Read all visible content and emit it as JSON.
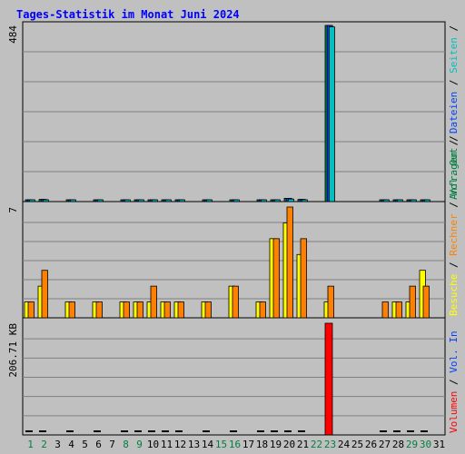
{
  "title": "Tages-Statistik im Monat Juni 2024",
  "colors": {
    "background": "#c0c0c0",
    "title": "#0000ff",
    "grid": "#808080",
    "anfragen": "#008040",
    "dateien": "#0040ff",
    "seiten": "#00c0c0",
    "besuche": "#ffff00",
    "rechner": "#ff8000",
    "vol_out": "#008040",
    "vol_in": "#0040ff",
    "volumen": "#ff0000",
    "weekend_day": "#008040",
    "weekday": "#000000"
  },
  "chart_data": [
    {
      "type": "bar",
      "panel": "top",
      "ymax_label": "484",
      "ylim": [
        0,
        484
      ],
      "legend_vertical": [
        {
          "text": "Anfragen",
          "color": "#008040"
        },
        {
          "text": "Dateien",
          "color": "#0040ff"
        },
        {
          "text": "Seiten",
          "color": "#00c0c0"
        }
      ],
      "categories": [
        1,
        2,
        3,
        4,
        5,
        6,
        7,
        8,
        9,
        10,
        11,
        12,
        13,
        14,
        15,
        16,
        17,
        18,
        19,
        20,
        21,
        22,
        23,
        24,
        25,
        26,
        27,
        28,
        29,
        30,
        31
      ],
      "series": [
        {
          "name": "Anfragen",
          "values": [
            3,
            6,
            0,
            2,
            0,
            2,
            0,
            2,
            2,
            3,
            5,
            3,
            0,
            2,
            0,
            2,
            0,
            2,
            4,
            9,
            6,
            0,
            484,
            0,
            0,
            0,
            2,
            2,
            3,
            5,
            0
          ]
        },
        {
          "name": "Dateien",
          "values": [
            3,
            6,
            0,
            2,
            0,
            2,
            0,
            2,
            2,
            3,
            5,
            3,
            0,
            2,
            0,
            2,
            0,
            2,
            4,
            9,
            6,
            0,
            484,
            0,
            0,
            0,
            2,
            2,
            3,
            5,
            0
          ]
        },
        {
          "name": "Seiten",
          "values": [
            2,
            5,
            0,
            1,
            0,
            1,
            0,
            1,
            1,
            2,
            4,
            2,
            0,
            1,
            0,
            1,
            0,
            1,
            3,
            7,
            5,
            0,
            480,
            0,
            0,
            0,
            1,
            1,
            2,
            4,
            0
          ]
        }
      ]
    },
    {
      "type": "bar",
      "panel": "middle",
      "ymax_label": "7",
      "ylim": [
        0,
        7
      ],
      "legend_vertical": [
        {
          "text": "Besuche",
          "color": "#ffff00"
        },
        {
          "text": "Rechner",
          "color": "#ff8000"
        },
        {
          "text": "Vol. Out",
          "color": "#008040"
        }
      ],
      "categories": [
        1,
        2,
        3,
        4,
        5,
        6,
        7,
        8,
        9,
        10,
        11,
        12,
        13,
        14,
        15,
        16,
        17,
        18,
        19,
        20,
        21,
        22,
        23,
        24,
        25,
        26,
        27,
        28,
        29,
        30,
        31
      ],
      "series": [
        {
          "name": "Besuche",
          "values": [
            1,
            2,
            0,
            1,
            0,
            1,
            0,
            1,
            1,
            1,
            1,
            1,
            0,
            1,
            0,
            2,
            0,
            1,
            5,
            6,
            4,
            0,
            1,
            0,
            0,
            0,
            0,
            1,
            1,
            3,
            0
          ]
        },
        {
          "name": "Rechner",
          "values": [
            1,
            3,
            0,
            1,
            0,
            1,
            0,
            1,
            1,
            2,
            1,
            1,
            0,
            1,
            0,
            2,
            0,
            1,
            5,
            7,
            5,
            0,
            2,
            0,
            0,
            0,
            1,
            1,
            2,
            2,
            0
          ]
        }
      ]
    },
    {
      "type": "bar",
      "panel": "bottom",
      "ymax_label": "206.71 KB",
      "ylim": [
        0,
        206.71
      ],
      "legend_vertical": [
        {
          "text": "Volumen",
          "color": "#ff0000"
        },
        {
          "text": "Vol. In",
          "color": "#0040ff"
        }
      ],
      "categories": [
        1,
        2,
        3,
        4,
        5,
        6,
        7,
        8,
        9,
        10,
        11,
        12,
        13,
        14,
        15,
        16,
        17,
        18,
        19,
        20,
        21,
        22,
        23,
        24,
        25,
        26,
        27,
        28,
        29,
        30,
        31
      ],
      "series": [
        {
          "name": "Volumen",
          "values": [
            0.5,
            0.5,
            0,
            0.5,
            0,
            0.5,
            0,
            0.5,
            0.5,
            0.5,
            0.5,
            0.5,
            0,
            0.5,
            0,
            0.5,
            0,
            0.5,
            0.5,
            0.5,
            0.5,
            0,
            206.71,
            0,
            0,
            0,
            0.5,
            0.5,
            0.5,
            0.5,
            0
          ]
        }
      ]
    }
  ],
  "x_labels": [
    "1",
    "2",
    "3",
    "4",
    "5",
    "6",
    "7",
    "8",
    "9",
    "10",
    "11",
    "12",
    "13",
    "14",
    "15",
    "16",
    "17",
    "18",
    "19",
    "20",
    "21",
    "22",
    "23",
    "24",
    "25",
    "26",
    "27",
    "28",
    "29",
    "30",
    "31"
  ],
  "weekend_days": [
    1,
    2,
    8,
    9,
    15,
    16,
    22,
    23,
    29,
    30
  ]
}
